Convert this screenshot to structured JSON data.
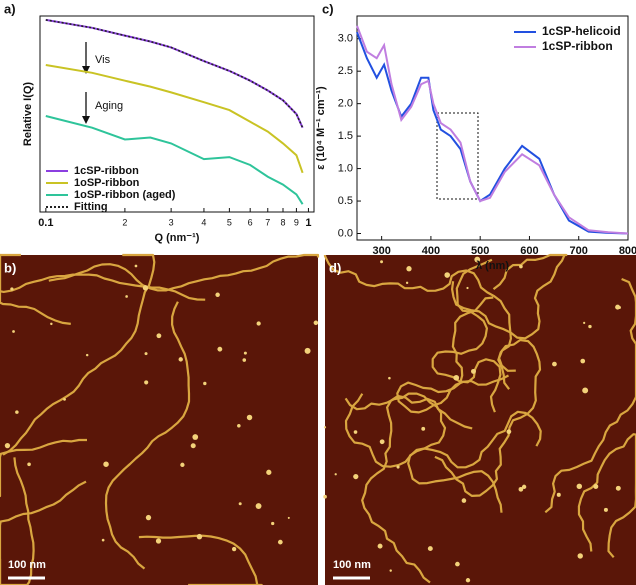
{
  "chart_data": [
    {
      "type": "line",
      "label": "a)",
      "xlabel": "Q (nm⁻¹)",
      "ylabel": "Relative I(Q)",
      "log_x": true,
      "xlim": [
        0.095,
        1.05
      ],
      "ylim": [
        0,
        1
      ],
      "xticks": [
        0.1,
        {
          "value": 0.2,
          "label": "2"
        },
        {
          "value": 0.3,
          "label": "3"
        },
        {
          "value": 0.4,
          "label": "4"
        },
        {
          "value": 0.5,
          "label": "5"
        },
        {
          "value": 0.6,
          "label": "6"
        },
        {
          "value": 0.7,
          "label": "7"
        },
        {
          "value": 0.8,
          "label": "8"
        },
        {
          "value": 0.9,
          "label": "9"
        },
        1
      ],
      "annotations": [
        "Vis",
        "Aging"
      ],
      "legend": "lower-left",
      "x": [
        0.1,
        0.15,
        0.2,
        0.25,
        0.3,
        0.4,
        0.5,
        0.6,
        0.7,
        0.8,
        0.9,
        0.95
      ],
      "series": [
        {
          "name": "1cSP-ribbon",
          "color": "#8b3fe0",
          "style": "solid",
          "values": [
            0.98,
            0.94,
            0.9,
            0.87,
            0.84,
            0.77,
            0.72,
            0.67,
            0.62,
            0.57,
            0.5,
            0.43
          ]
        },
        {
          "name": "1oSP-ribbon",
          "color": "#c9c324",
          "style": "solid",
          "values": [
            0.75,
            0.71,
            0.67,
            0.64,
            0.61,
            0.56,
            0.52,
            0.46,
            0.41,
            0.35,
            0.29,
            0.2
          ]
        },
        {
          "name": "1oSP-ribbon (aged)",
          "color": "#2ec49a",
          "style": "solid",
          "values": [
            0.49,
            0.43,
            0.37,
            0.38,
            0.35,
            0.27,
            0.28,
            0.24,
            0.18,
            0.14,
            0.09,
            0.04
          ]
        },
        {
          "name": "Fitting",
          "color": "#222222",
          "style": "dotted",
          "values": [
            0.98,
            0.94,
            0.9,
            0.87,
            0.84,
            0.77,
            0.72,
            0.67,
            0.62,
            0.57,
            0.5,
            0.43
          ]
        }
      ]
    },
    {
      "type": "line",
      "label": "c)",
      "xlabel": "λ (nm)",
      "ylabel": "ε (10⁴ M⁻¹ cm⁻¹)",
      "log_x": false,
      "xlim": [
        250,
        800
      ],
      "ylim": [
        -0.1,
        3.35
      ],
      "xticks": [
        300,
        400,
        500,
        600,
        700,
        800
      ],
      "yticks": [
        {
          "value": 0,
          "label": "0.0"
        },
        0.5,
        {
          "value": 1,
          "label": "1.0"
        },
        1.5,
        {
          "value": 2,
          "label": "2.0"
        },
        2.5,
        {
          "value": 3,
          "label": "3.0"
        }
      ],
      "legend": "upper-right",
      "x": [
        250,
        270,
        290,
        305,
        320,
        340,
        360,
        380,
        395,
        405,
        420,
        440,
        460,
        480,
        500,
        520,
        550,
        585,
        620,
        650,
        680,
        720,
        760,
        800
      ],
      "series": [
        {
          "name": "1cSP-helicoid",
          "color": "#2250e0",
          "style": "solid",
          "values": [
            3.1,
            2.7,
            2.4,
            2.6,
            2.2,
            1.8,
            2.0,
            2.4,
            2.4,
            1.9,
            1.6,
            1.5,
            1.3,
            0.8,
            0.5,
            0.6,
            1.0,
            1.35,
            1.15,
            0.6,
            0.2,
            0.03,
            0.01,
            0.0
          ]
        },
        {
          "name": "1cSP-ribbon",
          "color": "#c07ee0",
          "style": "solid",
          "values": [
            3.2,
            2.8,
            2.7,
            2.9,
            2.3,
            1.75,
            1.95,
            2.3,
            2.35,
            2.0,
            1.7,
            1.6,
            1.4,
            0.8,
            0.5,
            0.55,
            0.95,
            1.22,
            1.05,
            0.6,
            0.25,
            0.05,
            0.02,
            0.0
          ]
        }
      ]
    }
  ],
  "images": [
    {
      "label": "b)",
      "scale_bar": "100 nm"
    },
    {
      "label": "d)",
      "scale_bar": "100 nm"
    }
  ]
}
